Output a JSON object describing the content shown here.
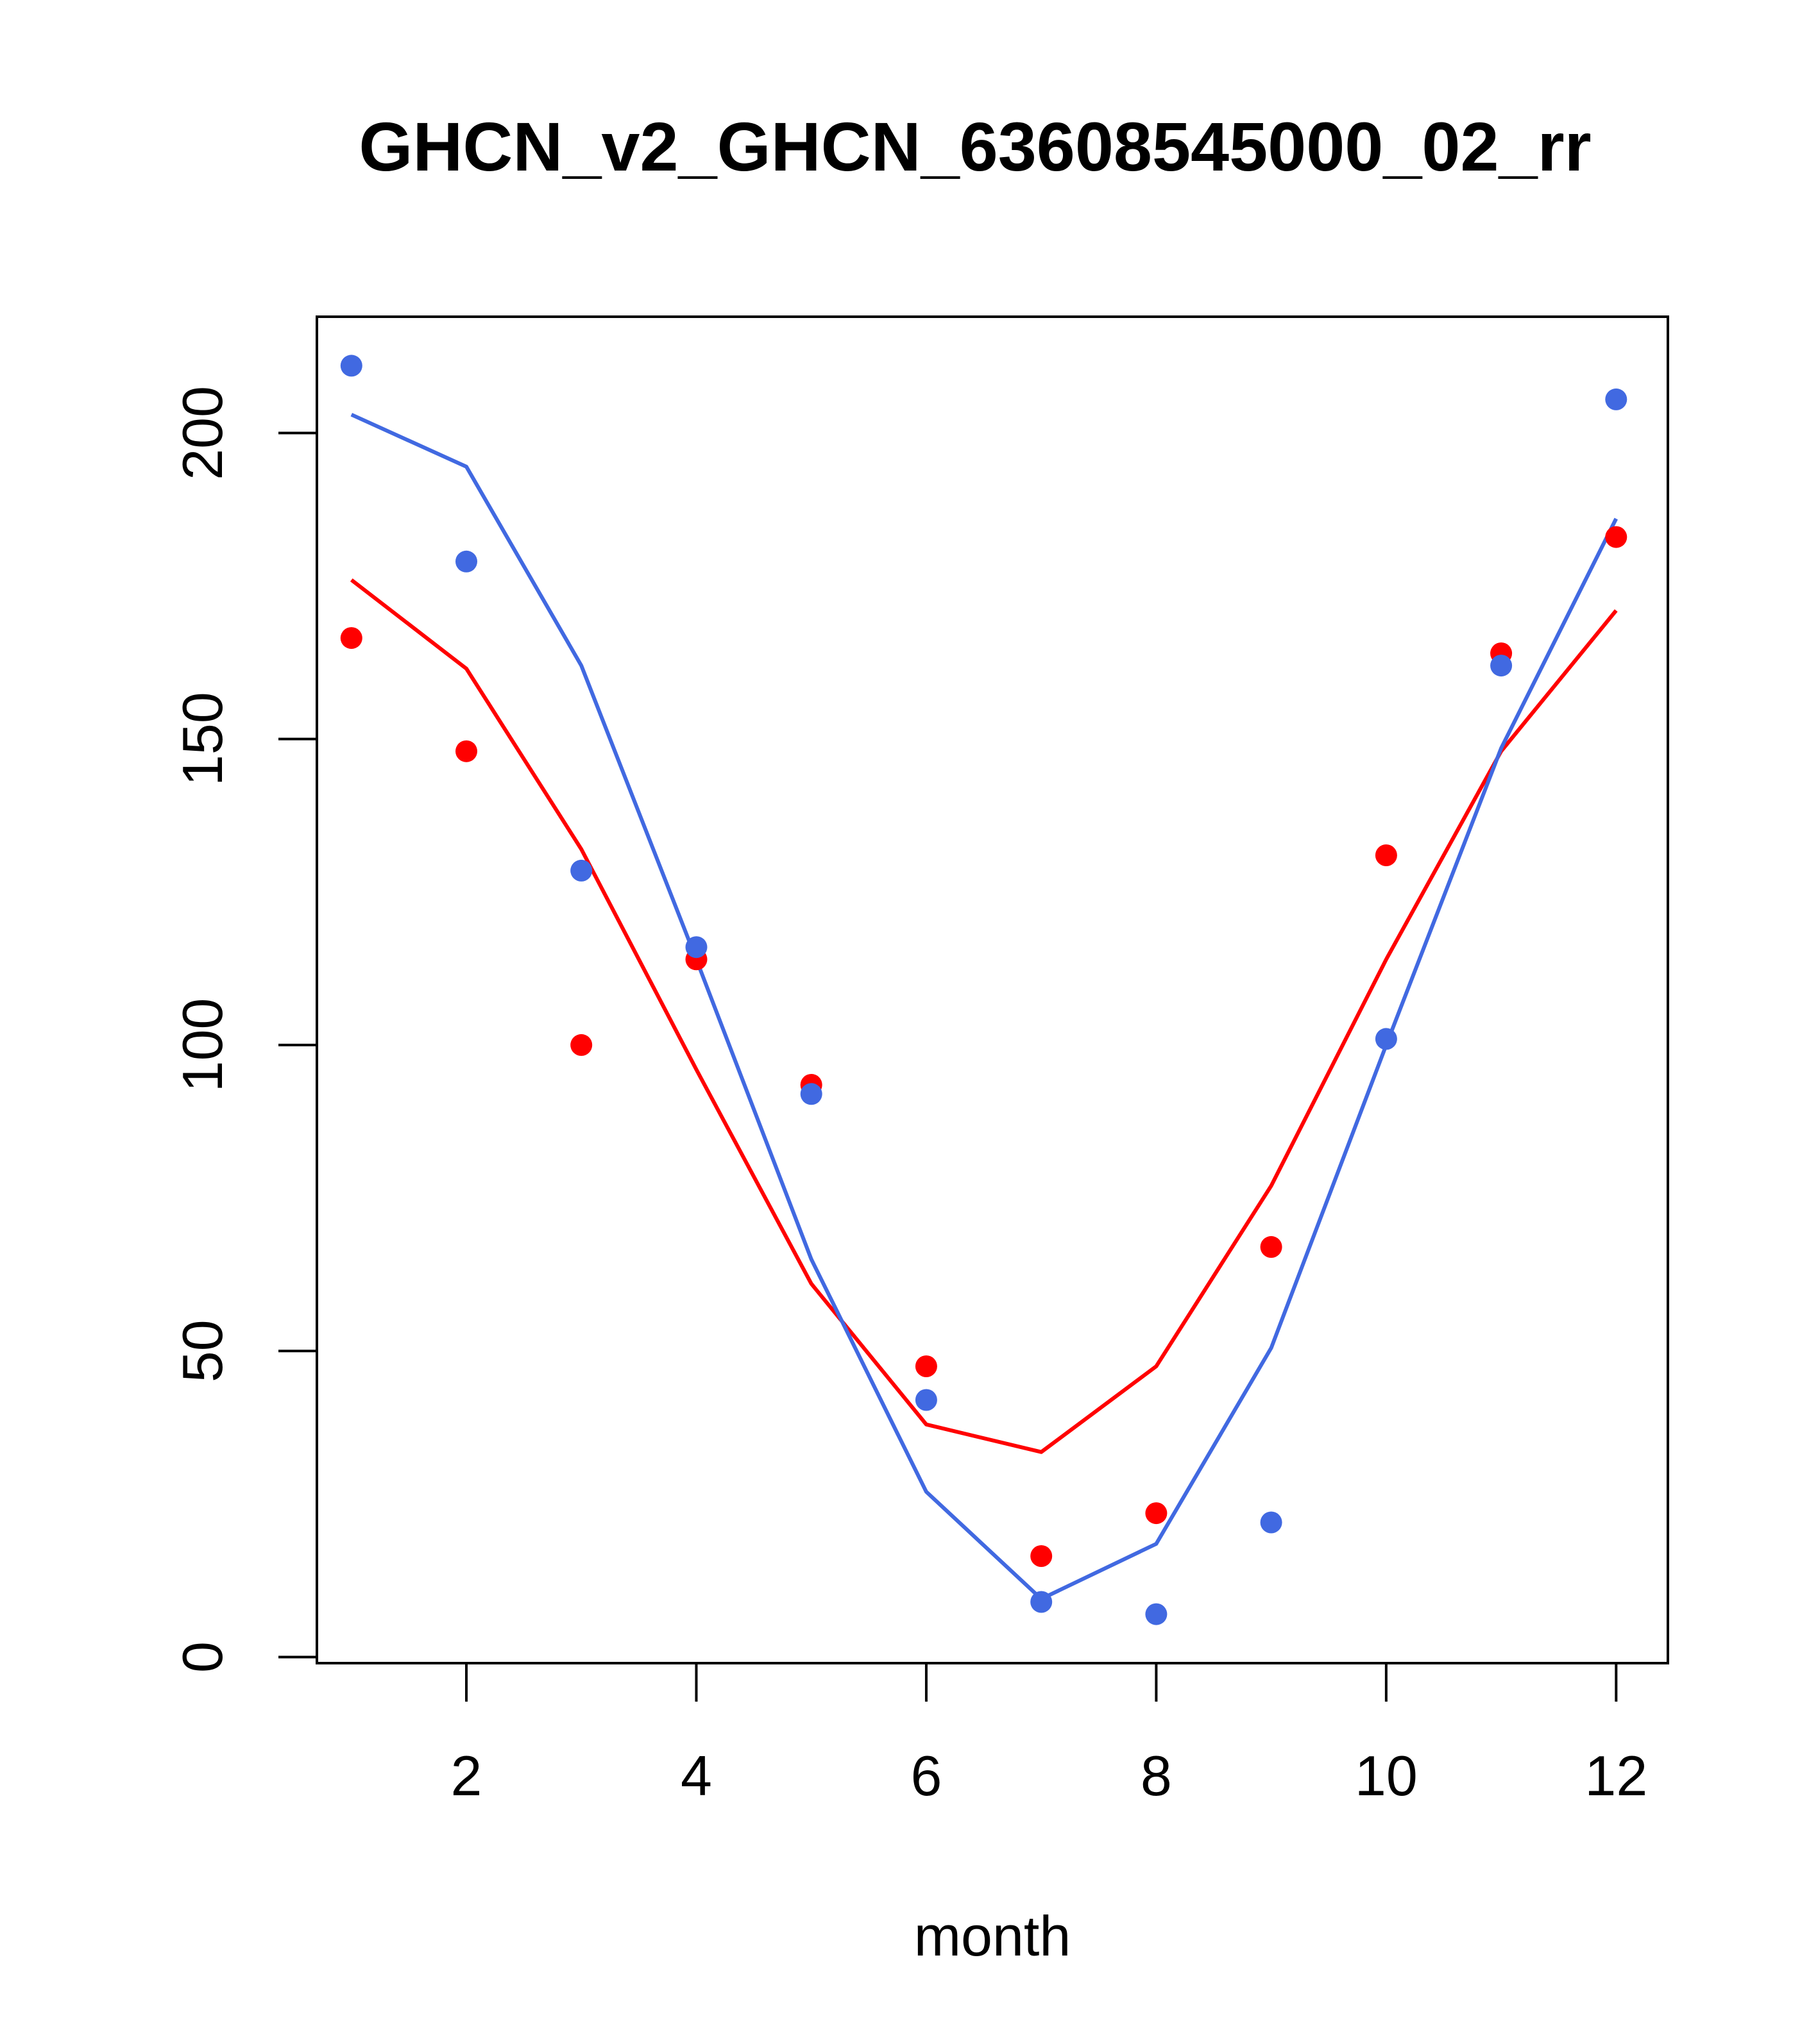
{
  "chart_data": {
    "type": "line",
    "title": "GHCN_v2_GHCN_63608545000_02_rr",
    "xlabel": "month",
    "ylabel": "",
    "xlim": [
      0.7,
      12.45
    ],
    "ylim": [
      -1,
      219
    ],
    "x_ticks": [
      2,
      4,
      6,
      8,
      10,
      12
    ],
    "y_ticks": [
      0,
      50,
      100,
      150,
      200
    ],
    "grid": false,
    "x": [
      1,
      2,
      3,
      4,
      5,
      6,
      7,
      8,
      9,
      10,
      11,
      12
    ],
    "series": [
      {
        "color": "#ff0000",
        "points": [
          166.5,
          148,
          100,
          114,
          93.5,
          47.5,
          16.5,
          23.5,
          67,
          131,
          164,
          183
        ],
        "line": [
          176,
          161.5,
          132,
          96,
          61,
          38,
          33.5,
          47.5,
          77,
          114,
          148,
          171
        ]
      },
      {
        "color": "#4169e1",
        "points": [
          211,
          179,
          128.5,
          116,
          92,
          42,
          9,
          7,
          22,
          101,
          162,
          205.5
        ],
        "line": [
          203,
          194.5,
          162,
          114,
          65,
          27,
          9.5,
          18.5,
          50.5,
          100,
          148.5,
          186
        ]
      }
    ]
  }
}
